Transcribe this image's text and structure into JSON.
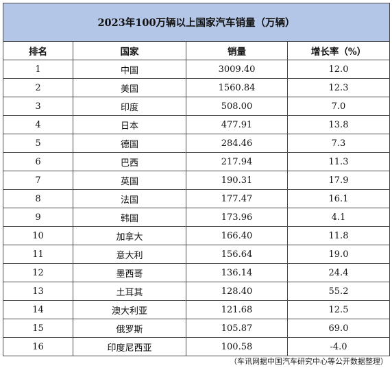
{
  "title": "2023年100万辆以上国家汽车销量（万辆）",
  "headers": {
    "rank": "排名",
    "country": "国家",
    "sales": "销量",
    "growth": "增长率（%）"
  },
  "rows": [
    {
      "rank": "1",
      "country": "中国",
      "sales": "3009.40",
      "growth": "12.0"
    },
    {
      "rank": "2",
      "country": "美国",
      "sales": "1560.84",
      "growth": "12.3"
    },
    {
      "rank": "3",
      "country": "印度",
      "sales": "508.00",
      "growth": "7.0"
    },
    {
      "rank": "4",
      "country": "日本",
      "sales": "477.91",
      "growth": "13.8"
    },
    {
      "rank": "5",
      "country": "德国",
      "sales": "284.46",
      "growth": "7.3"
    },
    {
      "rank": "6",
      "country": "巴西",
      "sales": "217.94",
      "growth": "11.3"
    },
    {
      "rank": "7",
      "country": "英国",
      "sales": "190.31",
      "growth": "17.9"
    },
    {
      "rank": "8",
      "country": "法国",
      "sales": "177.47",
      "growth": "16.1"
    },
    {
      "rank": "9",
      "country": "韩国",
      "sales": "173.96",
      "growth": "4.1"
    },
    {
      "rank": "10",
      "country": "加拿大",
      "sales": "166.40",
      "growth": "11.8"
    },
    {
      "rank": "11",
      "country": "意大利",
      "sales": "156.64",
      "growth": "19.0"
    },
    {
      "rank": "12",
      "country": "墨西哥",
      "sales": "136.14",
      "growth": "24.4"
    },
    {
      "rank": "13",
      "country": "土耳其",
      "sales": "128.40",
      "growth": "55.2"
    },
    {
      "rank": "14",
      "country": "澳大利亚",
      "sales": "121.68",
      "growth": "12.5"
    },
    {
      "rank": "15",
      "country": "俄罗斯",
      "sales": "105.87",
      "growth": "69.0"
    },
    {
      "rank": "16",
      "country": "印度尼西亚",
      "sales": "100.58",
      "growth": "-4.0"
    }
  ],
  "source_note": "（车讯网据中国汽车研究中心等公开数据整理）",
  "colors": {
    "title_background": "#b4c6e7",
    "border": "#4a4a4a"
  }
}
